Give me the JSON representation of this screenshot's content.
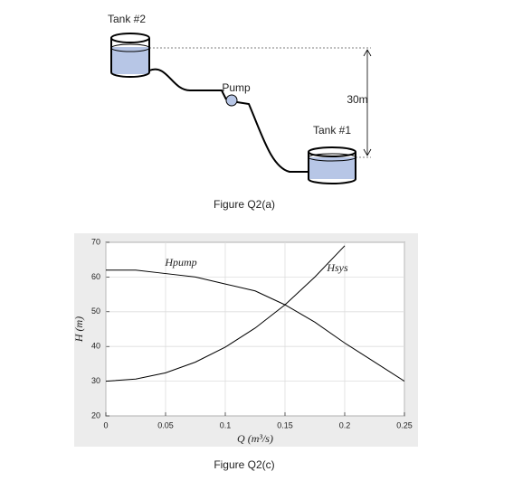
{
  "diagram": {
    "tank_2_label": "Tank #2",
    "pump_label": "Pump",
    "tank_1_label": "Tank #1",
    "height_label": "30m",
    "caption": "Figure Q2(a)"
  },
  "chart_data": {
    "type": "line",
    "caption": "Figure Q2(c)",
    "x_label": "Q (m³/s)",
    "y_label": "H (m)",
    "x": [
      0,
      0.025,
      0.05,
      0.075,
      0.1,
      0.125,
      0.15,
      0.175,
      0.2,
      0.225,
      0.25
    ],
    "series": [
      {
        "name": "Hpump",
        "color": "#000000",
        "values": [
          62,
          62,
          61,
          60,
          58,
          56,
          52,
          47,
          41,
          35.5,
          30
        ]
      },
      {
        "name": "Hsys",
        "color": "#000000",
        "values": [
          30,
          30.6,
          32.4,
          35.5,
          39.8,
          45.3,
          52,
          60,
          69,
          null,
          null
        ]
      }
    ],
    "xlim": [
      0,
      0.25
    ],
    "ylim": [
      20,
      70
    ],
    "xticks": [
      0,
      0.05,
      0.1,
      0.15,
      0.2,
      0.25
    ],
    "yticks": [
      20,
      30,
      40,
      50,
      60,
      70
    ],
    "grid": true
  }
}
